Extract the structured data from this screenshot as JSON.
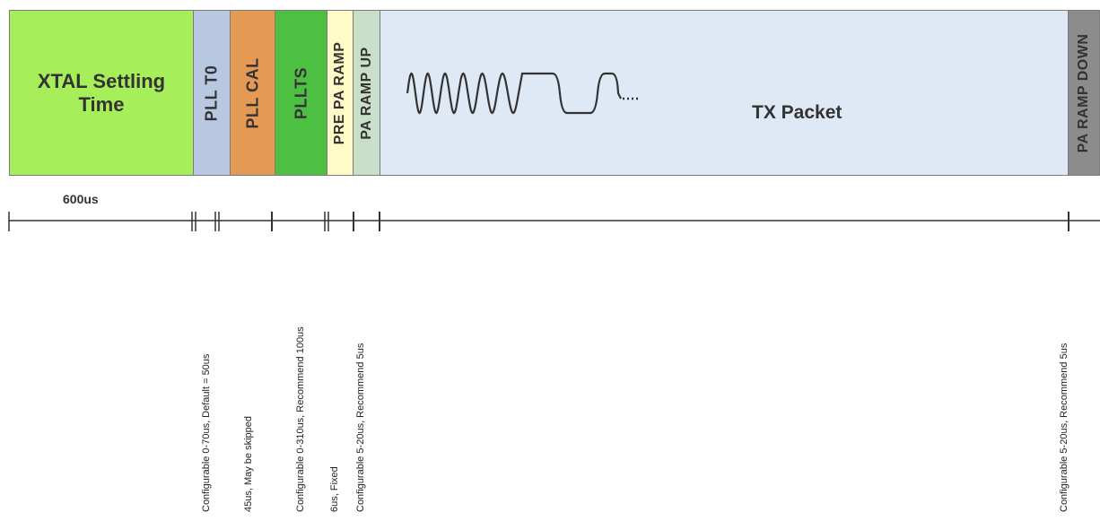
{
  "segments": {
    "xtal": {
      "label": "XTAL Settling\nTime",
      "color": "#a6ef5a"
    },
    "pll_t0": {
      "label": "PLL T0",
      "color": "#b8c8e0"
    },
    "pll_cal": {
      "label": "PLL CAL",
      "color": "#e49a55"
    },
    "pllts": {
      "label": "PLLTS",
      "color": "#4dbf43"
    },
    "pre_pa_ramp": {
      "label": "PRE PA RAMP",
      "color": "#fffbc6"
    },
    "pa_ramp_up": {
      "label": "PA RAMP UP",
      "color": "#c9dfc9"
    },
    "tx_packet": {
      "label": "TX Packet",
      "color": "#dfe8f5"
    },
    "pa_ramp_down": {
      "label": "PA RAMP DOWN",
      "color": "#8c8c8c"
    }
  },
  "timeline": {
    "xtal_duration": "600us"
  },
  "notes": {
    "pll_t0": "Configurable 0-70us, Default = 50us",
    "pll_cal": "45us, May be skipped",
    "pllts": "Configurable 0-310us, Recommend 100us",
    "pre_pa_ramp": "6us, Fixed",
    "pa_ramp_up": "Configurable 5-20us, Recommend 5us",
    "pa_ramp_down": "Configurable 5-20us, Recommend 5us"
  }
}
